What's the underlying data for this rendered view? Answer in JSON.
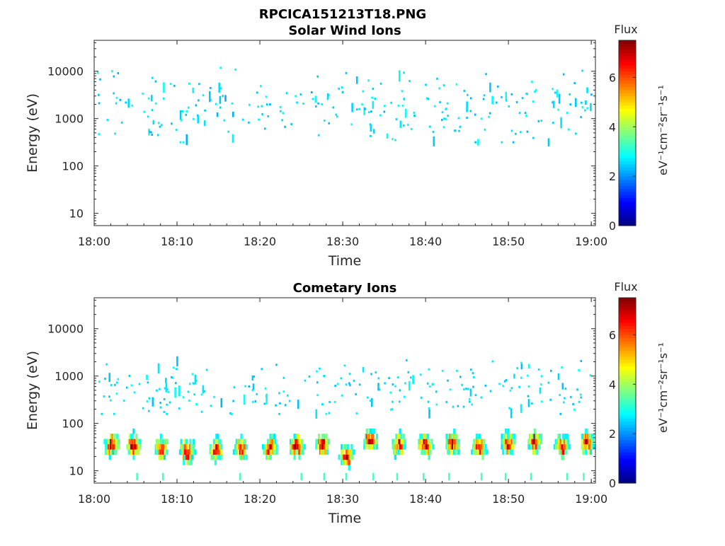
{
  "figure": {
    "title": "RPCICA151213T18.PNG"
  },
  "chart_data": [
    {
      "type": "heatmap",
      "title": "Solar Wind Ions",
      "xlabel": "Time",
      "ylabel": "Energy (eV)",
      "x_ticks": [
        "18:00",
        "18:10",
        "18:20",
        "18:30",
        "18:40",
        "18:50",
        "19:00"
      ],
      "x_range_minutes": [
        0,
        60.5
      ],
      "y_ticks": [
        "10",
        "100",
        "1000",
        "10000"
      ],
      "y_scale": "log",
      "y_range": [
        5.5,
        45000
      ],
      "colorbar": {
        "label": "Flux",
        "unit": "eV⁻¹cm⁻²sr⁻¹s⁻¹",
        "ticks": [
          "0",
          "2",
          "4",
          "6"
        ],
        "range": [
          0,
          7.5
        ],
        "colormap": "jet"
      },
      "colors": {
        "dot": "#1ea0ff"
      },
      "seed": 17,
      "scatter": {
        "count": 270,
        "log_min": 2.5,
        "log_max": 4.2,
        "log_center": 3.25,
        "value_range": [
          2.2,
          2.9
        ]
      },
      "bands": []
    },
    {
      "type": "heatmap",
      "title": "Cometary Ions",
      "xlabel": "Time",
      "ylabel": "Energy (eV)",
      "x_ticks": [
        "18:00",
        "18:10",
        "18:20",
        "18:30",
        "18:40",
        "18:50",
        "19:00"
      ],
      "x_range_minutes": [
        0,
        60.5
      ],
      "y_ticks": [
        "10",
        "100",
        "1000",
        "10000"
      ],
      "y_scale": "log",
      "y_range": [
        5.5,
        45000
      ],
      "colorbar": {
        "label": "Flux",
        "unit": "eV⁻¹cm⁻²sr⁻¹s⁻¹",
        "ticks": [
          "0",
          "2",
          "4",
          "6"
        ],
        "range": [
          0,
          7.5
        ],
        "colormap": "jet"
      },
      "seed": 91,
      "scatter": {
        "count": 240,
        "log_min": 2.2,
        "log_max": 3.6,
        "log_center": 2.7,
        "value_range": [
          2.3,
          2.9
        ]
      },
      "bands": [
        {
          "t": 2.2,
          "e": 34,
          "peak": 7.2
        },
        {
          "t": 4.8,
          "e": 36,
          "peak": 7.2
        },
        {
          "t": 8.2,
          "e": 30,
          "peak": 6.6
        },
        {
          "t": 11.3,
          "e": 26,
          "peak": 7.3
        },
        {
          "t": 14.8,
          "e": 28,
          "peak": 6.8
        },
        {
          "t": 17.8,
          "e": 30,
          "peak": 6.7
        },
        {
          "t": 21.3,
          "e": 30,
          "peak": 7.0
        },
        {
          "t": 24.5,
          "e": 34,
          "peak": 7.3
        },
        {
          "t": 27.6,
          "e": 36,
          "peak": 6.8
        },
        {
          "t": 30.5,
          "e": 22,
          "peak": 7.3
        },
        {
          "t": 33.4,
          "e": 45,
          "peak": 7.0
        },
        {
          "t": 36.8,
          "e": 36,
          "peak": 6.8
        },
        {
          "t": 40.0,
          "e": 34,
          "peak": 7.3
        },
        {
          "t": 43.3,
          "e": 36,
          "peak": 7.2
        },
        {
          "t": 46.5,
          "e": 30,
          "peak": 7.0
        },
        {
          "t": 50.0,
          "e": 38,
          "peak": 7.0
        },
        {
          "t": 53.2,
          "e": 42,
          "peak": 7.0
        },
        {
          "t": 56.5,
          "e": 34,
          "peak": 6.8
        },
        {
          "t": 59.5,
          "e": 40,
          "peak": 7.2
        }
      ]
    }
  ]
}
